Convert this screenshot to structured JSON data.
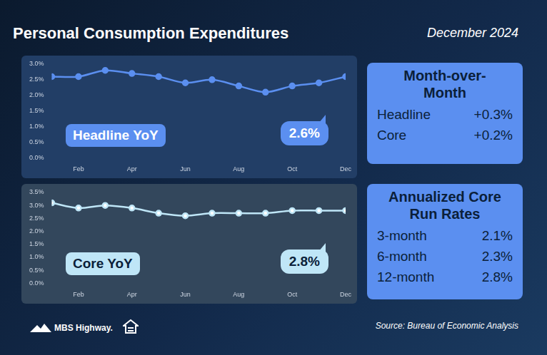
{
  "title": "Personal Consumption Expenditures",
  "date": "December 2024",
  "chart_data": [
    {
      "type": "line",
      "title": "Headline YoY",
      "annotation": "2.6%",
      "categories": [
        null,
        "Feb",
        null,
        "Apr",
        null,
        "Jun",
        null,
        "Aug",
        null,
        "Oct",
        null,
        "Dec"
      ],
      "values": [
        2.6,
        2.6,
        2.8,
        2.7,
        2.6,
        2.4,
        2.5,
        2.3,
        2.1,
        2.3,
        2.4,
        2.6
      ],
      "color": "#5b8ff0",
      "marker": "circle",
      "line_style": "solid",
      "ylim": [
        0,
        3
      ],
      "yticks": [
        {
          "value": 0,
          "label": "0.0%"
        },
        {
          "value": 0.5,
          "label": "0.5%"
        },
        {
          "value": 1,
          "label": "1.0%"
        },
        {
          "value": 1.5,
          "label": "1.5%"
        },
        {
          "value": 2,
          "label": "2.0%"
        },
        {
          "value": 2.5,
          "label": "2.5%"
        },
        {
          "value": 3,
          "label": "3.0%"
        }
      ],
      "grid": false
    },
    {
      "type": "line",
      "title": "Core YoY",
      "annotation": "2.8%",
      "categories": [
        null,
        "Feb",
        null,
        "Apr",
        null,
        "Jun",
        null,
        "Aug",
        null,
        "Oct",
        null,
        "Dec"
      ],
      "values": [
        3.1,
        2.9,
        3.0,
        2.9,
        2.7,
        2.6,
        2.7,
        2.7,
        2.7,
        2.8,
        2.8,
        2.8
      ],
      "color": "#bfe6f7",
      "marker": "circle",
      "line_style": "solid",
      "ylim": [
        0,
        3.5
      ],
      "yticks": [
        {
          "value": 0,
          "label": "0.0%"
        },
        {
          "value": 0.5,
          "label": "0.5%"
        },
        {
          "value": 1,
          "label": "1.0%"
        },
        {
          "value": 1.5,
          "label": "1.5%"
        },
        {
          "value": 2,
          "label": "2.0%"
        },
        {
          "value": 2.5,
          "label": "2.5%"
        },
        {
          "value": 3,
          "label": "3.0%"
        },
        {
          "value": 3.5,
          "label": "3.5%"
        }
      ],
      "grid": false
    }
  ],
  "month_over_month": {
    "title": "Month-over-Month",
    "rows": [
      {
        "label": "Headline",
        "value": "+0.3%"
      },
      {
        "label": "Core",
        "value": "+0.2%"
      }
    ]
  },
  "core_run_rates": {
    "title": "Annualized Core Run Rates",
    "rows": [
      {
        "label": "3-month",
        "value": "2.1%"
      },
      {
        "label": "6-month",
        "value": "2.3%"
      },
      {
        "label": "12-month",
        "value": "2.8%"
      }
    ]
  },
  "logo": "MBS Highway.",
  "source": "Source: Bureau of Economic Analysis"
}
